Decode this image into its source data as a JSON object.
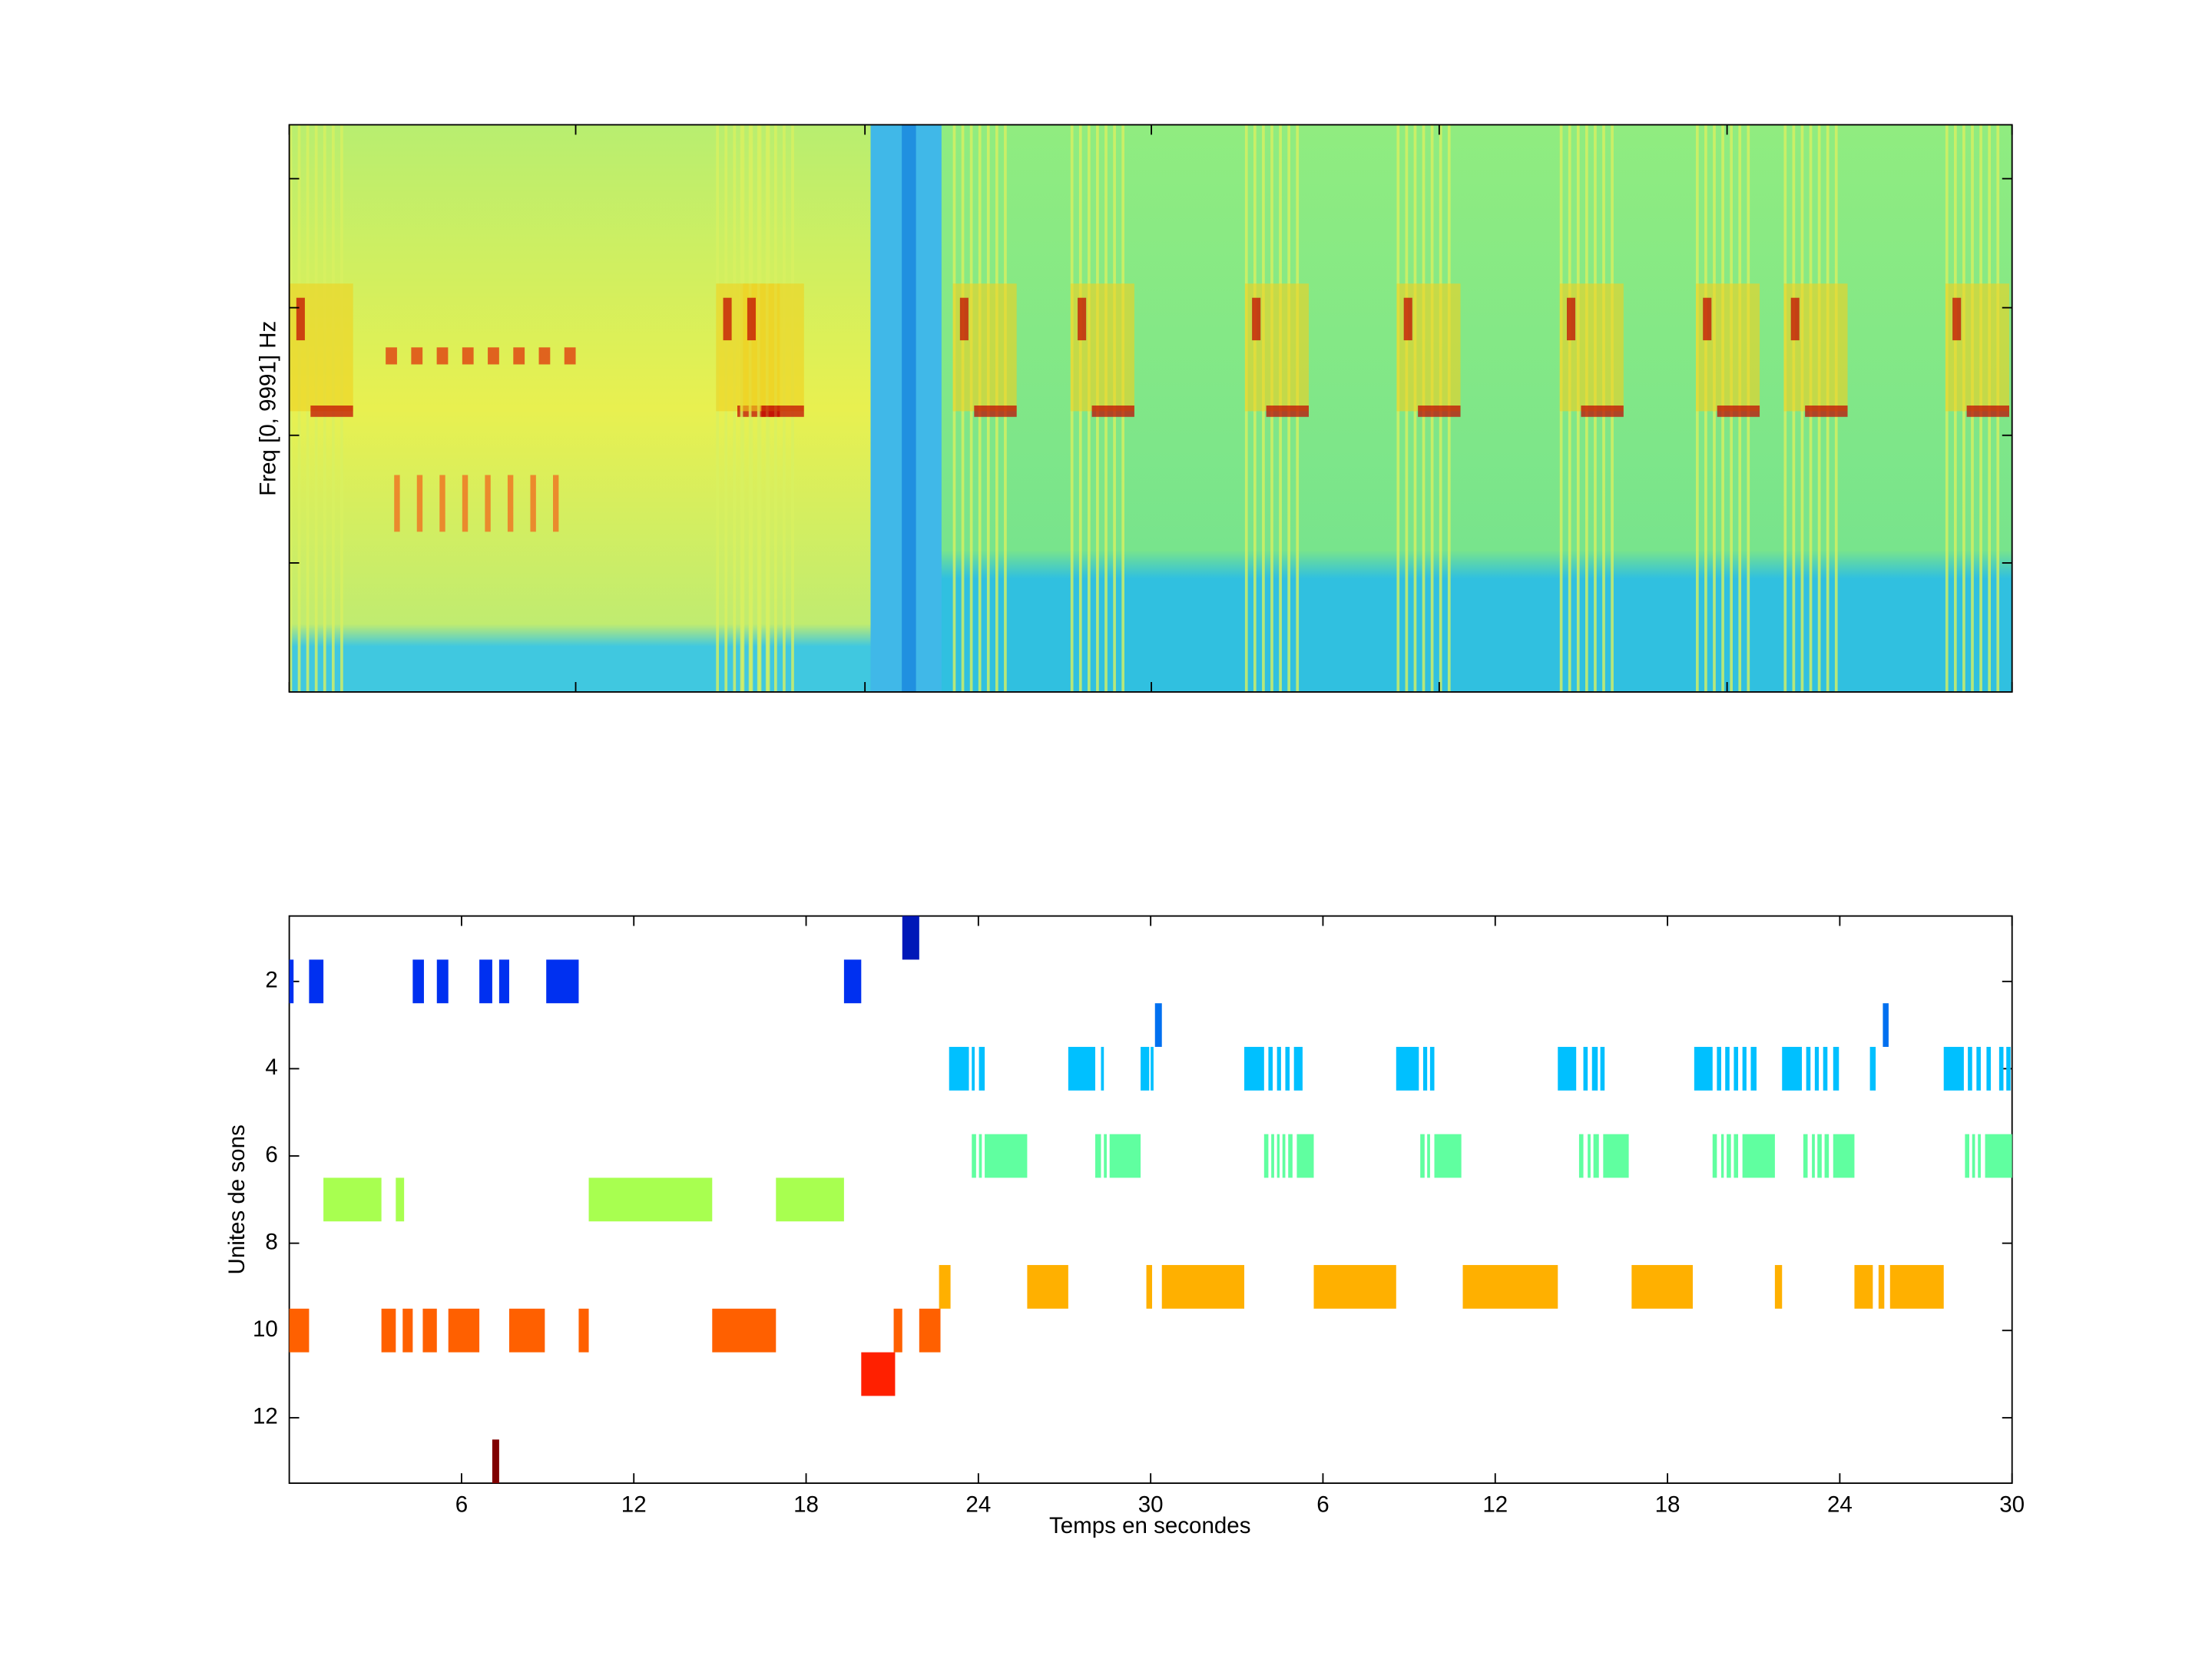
{
  "spectrogram": {
    "ylabel": "Freq [0, 9991] Hz"
  },
  "chart_data": {
    "type": "raster",
    "xlabel": "Temps en secondes",
    "ylabel": "Unites de sons",
    "xlim": [
      0,
      60
    ],
    "ylim": [
      0.5,
      13.5
    ],
    "y_reversed": true,
    "xticks": [
      6,
      12,
      18,
      24,
      30,
      {
        "value": 36,
        "label": "6"
      },
      {
        "value": 42,
        "label": "12"
      },
      {
        "value": 48,
        "label": "18"
      },
      {
        "value": 54,
        "label": "24"
      },
      {
        "value": 60,
        "label": "30"
      }
    ],
    "yticks": [
      2,
      4,
      6,
      8,
      10,
      12
    ],
    "series": [
      {
        "y": 1,
        "color": "#0018b8",
        "starts": [
          21.35
        ],
        "ends": [
          21.94
        ]
      },
      {
        "y": 2,
        "color": "#0030f0",
        "starts": [
          0,
          0.69,
          4.3,
          5.14,
          6.62,
          7.31,
          8.95,
          19.32
        ],
        "ends": [
          0.15,
          1.19,
          4.69,
          5.54,
          7.07,
          7.66,
          10.08,
          19.92
        ]
      },
      {
        "y": 3,
        "color": "#0070f0",
        "starts": [
          30.15,
          55.5
        ],
        "ends": [
          30.39,
          55.7
        ]
      },
      {
        "y": 4,
        "color": "#00c0ff",
        "starts": [
          22.98,
          23.77,
          24.02,
          27.13,
          28.27,
          29.65,
          30.0,
          33.26,
          34.1,
          34.4,
          34.69,
          34.99,
          38.55,
          39.49,
          39.73,
          44.18,
          45.07,
          45.37,
          45.66,
          48.93,
          49.72,
          50.01,
          50.31,
          50.61,
          50.9,
          51.99,
          52.83,
          53.13,
          53.42,
          53.77,
          55.05,
          57.62,
          58.46,
          58.76,
          59.11,
          59.55,
          59.8
        ],
        "ends": [
          23.67,
          23.87,
          24.22,
          28.07,
          28.37,
          29.95,
          30.1,
          33.95,
          34.25,
          34.54,
          34.84,
          35.29,
          39.34,
          39.63,
          39.88,
          44.82,
          45.22,
          45.57,
          45.81,
          49.57,
          49.87,
          50.16,
          50.46,
          50.75,
          51.1,
          52.68,
          52.98,
          53.27,
          53.57,
          53.97,
          55.25,
          58.32,
          58.61,
          58.91,
          59.26,
          59.7,
          59.95
        ]
      },
      {
        "y": 6,
        "color": "#60ffa0",
        "starts": [
          23.77,
          24.02,
          24.22,
          28.07,
          28.37,
          28.57,
          33.95,
          34.2,
          34.4,
          34.59,
          34.79,
          35.09,
          39.39,
          39.63,
          39.88,
          44.92,
          45.22,
          45.42,
          45.76,
          49.57,
          49.87,
          50.06,
          50.31,
          50.61,
          52.73,
          53.03,
          53.22,
          53.47,
          53.77,
          58.36,
          58.61,
          58.81,
          59.06
        ],
        "ends": [
          23.92,
          24.12,
          25.7,
          28.27,
          28.47,
          29.65,
          34.1,
          34.3,
          34.49,
          34.69,
          34.94,
          35.68,
          39.54,
          39.73,
          40.82,
          45.07,
          45.32,
          45.61,
          46.65,
          49.72,
          49.96,
          50.21,
          50.46,
          51.74,
          52.88,
          53.13,
          53.37,
          53.62,
          54.51,
          58.51,
          58.71,
          58.91,
          60
        ]
      },
      {
        "y": 7,
        "color": "#a8ff50",
        "starts": [
          1.19,
          3.71,
          10.43,
          16.95
        ],
        "ends": [
          3.21,
          4.0,
          14.73,
          19.32
        ]
      },
      {
        "y": 9,
        "color": "#ffb000",
        "starts": [
          22.63,
          25.7,
          29.85,
          30.39,
          35.68,
          40.87,
          46.75,
          51.74,
          54.51,
          55.35,
          55.75
        ],
        "ends": [
          23.03,
          27.13,
          30.05,
          33.26,
          38.55,
          44.18,
          48.88,
          51.99,
          55.15,
          55.55,
          57.62
        ]
      },
      {
        "y": 10,
        "color": "#ff6000",
        "starts": [
          0,
          3.21,
          3.95,
          4.65,
          5.54,
          7.66,
          10.08,
          14.73,
          21.05,
          21.94
        ],
        "ends": [
          0.69,
          3.71,
          4.3,
          5.14,
          6.62,
          8.9,
          10.43,
          16.95,
          21.35,
          22.68
        ]
      },
      {
        "y": 11,
        "color": "#ff2000",
        "starts": [
          19.92
        ],
        "ends": [
          21.1
        ]
      },
      {
        "y": 13,
        "color": "#800000",
        "starts": [
          7.07
        ],
        "ends": [
          7.31
        ]
      }
    ]
  }
}
